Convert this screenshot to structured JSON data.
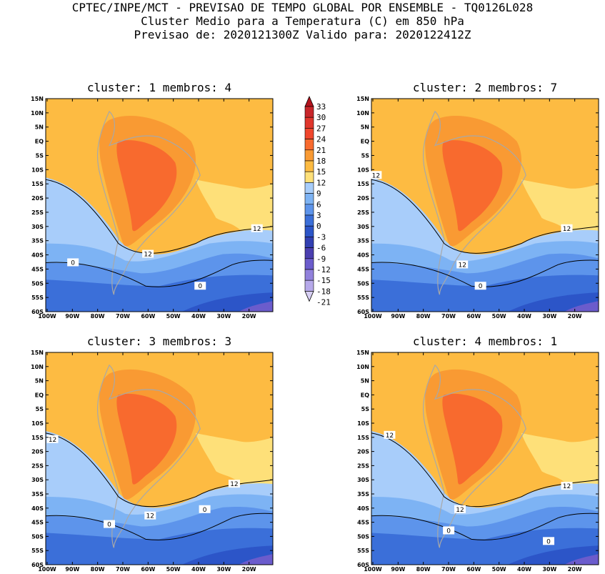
{
  "header": {
    "line1": "CPTEC/INPE/MCT - PREVISAO DE TEMPO GLOBAL POR ENSEMBLE - TQ0126L028",
    "line2": "Cluster Medio para a Temperatura (C) em 850 hPa",
    "line3": "Previsao de: 2020121300Z   Valido para: 2020122412Z"
  },
  "lat_labels": [
    "15N",
    "10N",
    "5N",
    "EQ",
    "5S",
    "10S",
    "15S",
    "20S",
    "25S",
    "30S",
    "35S",
    "40S",
    "45S",
    "50S",
    "55S",
    "60S"
  ],
  "lon_labels": [
    "100W",
    "90W",
    "80W",
    "70W",
    "60W",
    "50W",
    "40W",
    "30W",
    "20W"
  ],
  "colorbar": {
    "levels": [
      "33",
      "30",
      "27",
      "24",
      "21",
      "18",
      "15",
      "12",
      "9",
      "6",
      "3",
      "0",
      "-3",
      "-6",
      "-9",
      "-12",
      "-15",
      "-18",
      "-21"
    ],
    "colors": [
      "#b4131d",
      "#c8262a",
      "#e0362c",
      "#f0462c",
      "#f86a2e",
      "#f99a33",
      "#fdbb42",
      "#fee079",
      "#a8cdfa",
      "#7db3f4",
      "#5d94eb",
      "#3b6fd9",
      "#2c55c8",
      "#3240b2",
      "#4b3fb0",
      "#6b5ccc",
      "#9181dc",
      "#b6a9ea",
      "#d8d0f4"
    ]
  },
  "palette": {
    "c9": "#fee079",
    "c12": "#fdbb42",
    "c15": "#f99a33",
    "c18": "#f86a2e",
    "c21": "#f0462c",
    "c6": "#a8cdfa",
    "c3": "#7db3f4",
    "c0": "#5d94eb",
    "cm3": "#3b6fd9",
    "cm6": "#2c55c8",
    "cm9": "#3240b2",
    "cm12": "#6b5ccc"
  },
  "panels": [
    {
      "title": "cluster: 1   membros: 4",
      "contour_labels": [
        "12",
        "12",
        "0",
        "0"
      ]
    },
    {
      "title": "cluster: 2   membros: 7",
      "contour_labels": [
        "12",
        "12",
        "12",
        "0"
      ]
    },
    {
      "title": "cluster: 3   membros: 3",
      "contour_labels": [
        "12",
        "12",
        "12",
        "0",
        "0"
      ]
    },
    {
      "title": "cluster: 4   membros: 1",
      "contour_labels": [
        "12",
        "12",
        "12",
        "0",
        "0"
      ]
    }
  ]
}
